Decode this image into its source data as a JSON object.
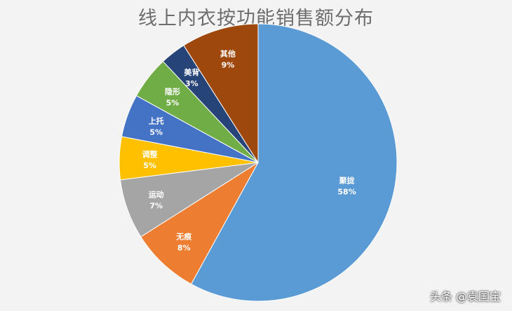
{
  "chart_data": {
    "type": "pie",
    "title": "线上内衣按功能销售额分布",
    "start": "12 o'clock, clockwise",
    "slices": [
      {
        "label": "聚拢",
        "value": 58,
        "display": "58%",
        "color": "#5b9bd5"
      },
      {
        "label": "无痕",
        "value": 8,
        "display": "8%",
        "color": "#ed7d31"
      },
      {
        "label": "运动",
        "value": 7,
        "display": "7%",
        "color": "#a5a5a5"
      },
      {
        "label": "调整",
        "value": 5,
        "display": "5%",
        "color": "#ffc000"
      },
      {
        "label": "上托",
        "value": 5,
        "display": "5%",
        "color": "#4472c4"
      },
      {
        "label": "隐形",
        "value": 5,
        "display": "5%",
        "color": "#70ad47"
      },
      {
        "label": "美背",
        "value": 3,
        "display": "3%",
        "color": "#264478"
      },
      {
        "label": "其他",
        "value": 9,
        "display": "9%",
        "color": "#9e480e"
      }
    ]
  },
  "watermark": "头条 @袁国宝"
}
